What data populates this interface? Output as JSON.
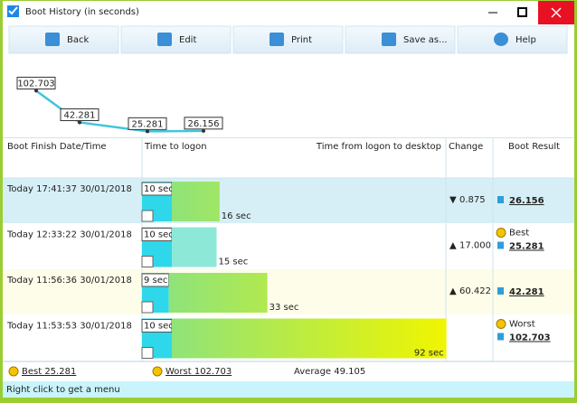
{
  "window": {
    "title": "Boot History (in seconds)"
  },
  "toolbar": [
    "Back",
    "Edit",
    "Print",
    "Save as...",
    "Help"
  ],
  "sparkline": {
    "values": [
      102.703,
      42.281,
      25.281,
      26.156
    ]
  },
  "table": {
    "headers": [
      "Boot Finish Date/Time",
      "Time to logon",
      "Time from logon to desktop",
      "Change",
      "Boot Result"
    ],
    "rows": [
      {
        "date": "Today  17:41:37 30/01/2018",
        "logon": 10,
        "logon_label": "10 sec",
        "desktop": 16,
        "desktop_label": "16 sec",
        "change": "0.875",
        "change_dir": "down",
        "result": 26.156
      },
      {
        "date": "Today  12:33:22 30/01/2018",
        "logon": 10,
        "logon_label": "10 sec",
        "desktop": 15,
        "desktop_label": "15 sec",
        "change": "17.000",
        "change_dir": "up",
        "badge": "Best",
        "result": 25.281
      },
      {
        "date": "Today  11:56:36 30/01/2018",
        "logon": 9,
        "logon_label": "9 sec",
        "desktop": 33,
        "desktop_label": "33 sec",
        "change": "60.422",
        "change_dir": "up",
        "result": 42.281
      },
      {
        "date": "Today  11:53:53 30/01/2018",
        "logon": 10,
        "logon_label": "10 sec",
        "desktop": 92,
        "desktop_label": "92 sec",
        "badge": "Worst",
        "result": 102.703
      }
    ]
  },
  "footer": {
    "best": "Best 25.281",
    "worst": "Worst 102.703",
    "average": "Average 49.105"
  },
  "status": "Right click to get a menu"
}
